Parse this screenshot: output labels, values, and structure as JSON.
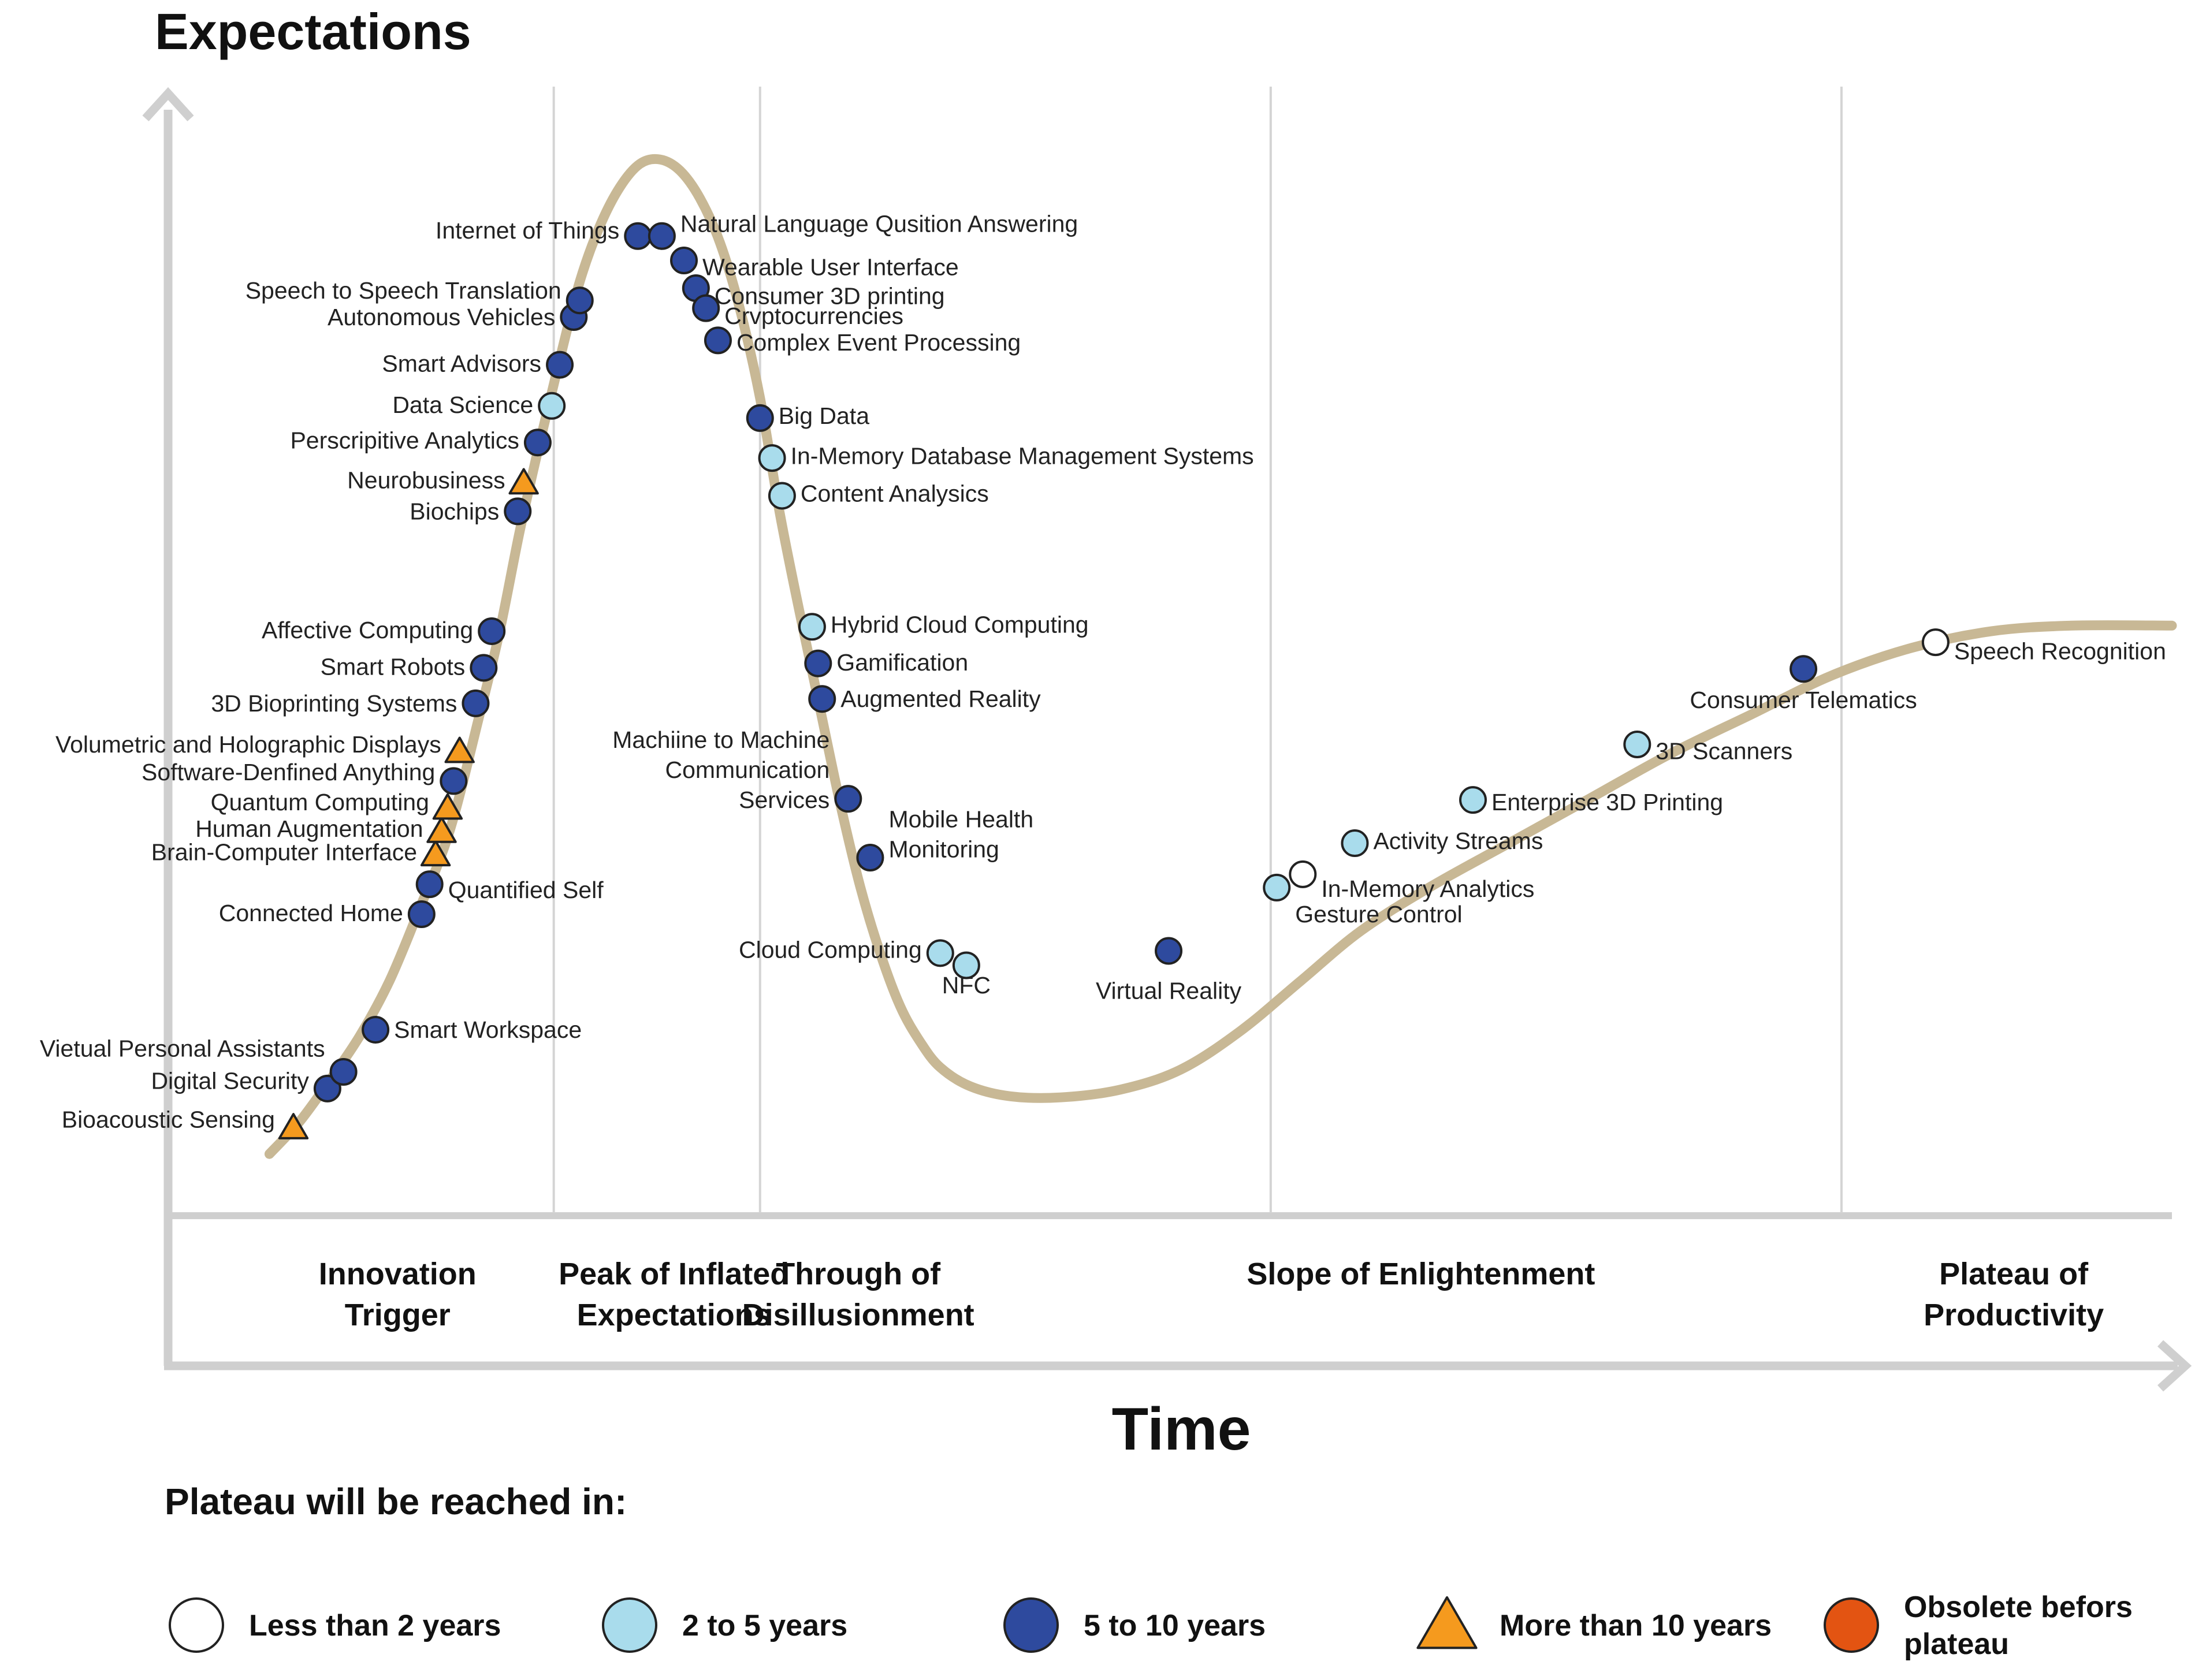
{
  "chart_data": {
    "type": "scatter",
    "title": "",
    "ylabel": "Expectations",
    "xlabel": "Time",
    "xlim": [
      0,
      100
    ],
    "ylim": [
      0,
      100
    ],
    "colors": {
      "curve": "#c8b895",
      "axis": "#cfcfcf",
      "divider": "#d4d4d4",
      "less_than_2": "#ffffff",
      "2_to_5": "#a9dcec",
      "5_to_10": "#2e4a9e",
      "more_than_10": "#f59a1e",
      "obsolete": "#e35412",
      "outline": "#222222"
    },
    "phases": [
      {
        "line1": "Innovation",
        "line2": "Trigger"
      },
      {
        "line1": "Peak of Inflated",
        "line2": "Expectations"
      },
      {
        "line1": "Through of",
        "line2": "Disillusionment"
      },
      {
        "line1": "Slope of Enlightenment",
        "line2": ""
      },
      {
        "line1": "Plateau of",
        "line2": "Productivity"
      }
    ],
    "phase_boundaries": [
      19.2,
      29.5,
      55.0,
      83.5
    ],
    "curve": [
      [
        5.0,
        5.4
      ],
      [
        6.5,
        8.3
      ],
      [
        8.0,
        12.0
      ],
      [
        9.5,
        16.0
      ],
      [
        11.0,
        21.0
      ],
      [
        12.5,
        27.5
      ],
      [
        14.0,
        34.5
      ],
      [
        15.5,
        45.0
      ],
      [
        16.5,
        52.5
      ],
      [
        17.5,
        61.5
      ],
      [
        18.5,
        69.5
      ],
      [
        19.5,
        77.0
      ],
      [
        20.5,
        84.0
      ],
      [
        21.5,
        89.0
      ],
      [
        22.5,
        92.5
      ],
      [
        23.5,
        94.6
      ],
      [
        24.5,
        95.0
      ],
      [
        25.5,
        94.0
      ],
      [
        26.5,
        91.5
      ],
      [
        27.5,
        87.5
      ],
      [
        28.5,
        81.5
      ],
      [
        29.5,
        73.5
      ],
      [
        30.5,
        63.0
      ],
      [
        31.5,
        54.0
      ],
      [
        32.5,
        45.5
      ],
      [
        33.5,
        37.0
      ],
      [
        34.5,
        29.5
      ],
      [
        35.5,
        23.5
      ],
      [
        36.5,
        18.7
      ],
      [
        37.5,
        15.5
      ],
      [
        38.5,
        13.2
      ],
      [
        40.0,
        11.5
      ],
      [
        42.0,
        10.6
      ],
      [
        44.5,
        10.5
      ],
      [
        47.5,
        11.2
      ],
      [
        50.5,
        13.0
      ],
      [
        53.5,
        16.5
      ],
      [
        56.5,
        21.0
      ],
      [
        59.5,
        25.5
      ],
      [
        63.0,
        29.5
      ],
      [
        67.0,
        33.5
      ],
      [
        71.0,
        37.5
      ],
      [
        75.0,
        41.5
      ],
      [
        79.0,
        45.0
      ],
      [
        83.0,
        48.5
      ],
      [
        87.0,
        51.0
      ],
      [
        91.0,
        52.5
      ],
      [
        95.0,
        53.0
      ],
      [
        100.0,
        53.0
      ]
    ],
    "points": [
      {
        "label": "Bioacoustic Sensing",
        "x": 6.2,
        "y": 7.8,
        "cat": "more_than_10",
        "side": "left",
        "ly": 8.5
      },
      {
        "label": "Digital Security",
        "x": 7.9,
        "y": 11.3,
        "cat": "5_to_10",
        "side": "left",
        "ly": 12.0
      },
      {
        "label": "Vietual Personal Assistants",
        "x": 8.7,
        "y": 12.8,
        "cat": "5_to_10",
        "side": "left",
        "ly": 14.9
      },
      {
        "label": "Smart Workspace",
        "x": 10.3,
        "y": 16.6,
        "cat": "5_to_10",
        "side": "right",
        "ly": 16.6
      },
      {
        "label": "Connected Home",
        "x": 12.6,
        "y": 27.0,
        "cat": "5_to_10",
        "side": "left",
        "ly": 27.1
      },
      {
        "label": "Quantified Self",
        "x": 13.0,
        "y": 29.7,
        "cat": "5_to_10",
        "side": "right",
        "ly": 29.2
      },
      {
        "label": "Brain-Computer Interface",
        "x": 13.3,
        "y": 32.4,
        "cat": "more_than_10",
        "side": "left",
        "ly": 32.6
      },
      {
        "label": "Human Augmentation",
        "x": 13.6,
        "y": 34.5,
        "cat": "more_than_10",
        "side": "left",
        "ly": 34.7
      },
      {
        "label": "Quantum Computing",
        "x": 13.9,
        "y": 36.6,
        "cat": "more_than_10",
        "side": "left",
        "ly": 37.1
      },
      {
        "label": "Software-Denfined Anything",
        "x": 14.2,
        "y": 39.0,
        "cat": "5_to_10",
        "side": "left",
        "ly": 39.8
      },
      {
        "label": "Volumetric and Holographic Displays",
        "x": 14.5,
        "y": 41.7,
        "cat": "more_than_10",
        "side": "left",
        "ly": 42.3
      },
      {
        "label": "3D Bioprinting Systems",
        "x": 15.3,
        "y": 46.0,
        "cat": "5_to_10",
        "side": "left",
        "ly": 46.0
      },
      {
        "label": "Smart Robots",
        "x": 15.7,
        "y": 49.2,
        "cat": "5_to_10",
        "side": "left",
        "ly": 49.3
      },
      {
        "label": "Affective Computing",
        "x": 16.1,
        "y": 52.5,
        "cat": "5_to_10",
        "side": "left",
        "ly": 52.6
      },
      {
        "label": "Biochips",
        "x": 17.4,
        "y": 63.3,
        "cat": "5_to_10",
        "side": "left",
        "ly": 63.3
      },
      {
        "label": "Neurobusiness",
        "x": 17.7,
        "y": 65.9,
        "cat": "more_than_10",
        "side": "left",
        "ly": 66.1
      },
      {
        "label": "Perscripitive Analytics",
        "x": 18.4,
        "y": 69.5,
        "cat": "5_to_10",
        "side": "left",
        "ly": 69.7
      },
      {
        "label": "Data Science",
        "x": 19.1,
        "y": 72.8,
        "cat": "2_to_5",
        "side": "left",
        "ly": 72.9
      },
      {
        "label": "Smart Advisors",
        "x": 19.5,
        "y": 76.5,
        "cat": "5_to_10",
        "side": "left",
        "ly": 76.6
      },
      {
        "label": "Autonomous Vehicles",
        "x": 20.2,
        "y": 80.8,
        "cat": "5_to_10",
        "side": "left",
        "ly": 80.8
      },
      {
        "label": "Speech to Speech Translation",
        "x": 20.5,
        "y": 82.3,
        "cat": "5_to_10",
        "side": "left",
        "ly": 83.2
      },
      {
        "label": "Internet of Things",
        "x": 23.4,
        "y": 88.1,
        "cat": "5_to_10",
        "side": "left",
        "ly": 88.6
      },
      {
        "label": "Natural Language Qusition Answering",
        "x": 24.6,
        "y": 88.1,
        "cat": "5_to_10",
        "side": "right",
        "ly": 89.2
      },
      {
        "label": "Wearable User Interface",
        "x": 25.7,
        "y": 85.9,
        "cat": "5_to_10",
        "side": "right",
        "ly": 85.3
      },
      {
        "label": "Consumer 3D printing",
        "x": 26.3,
        "y": 83.4,
        "cat": "5_to_10",
        "side": "right",
        "ly": 82.7
      },
      {
        "label": "Crvptocurrencies",
        "x": 26.8,
        "y": 81.6,
        "cat": "5_to_10",
        "side": "right",
        "ly": 80.9
      },
      {
        "label": "Complex Event Processing",
        "x": 27.4,
        "y": 78.7,
        "cat": "5_to_10",
        "side": "right",
        "ly": 78.5
      },
      {
        "label": "Big Data",
        "x": 29.5,
        "y": 71.7,
        "cat": "5_to_10",
        "side": "right",
        "ly": 71.9
      },
      {
        "label": "In-Memory Database Management Systems",
        "x": 30.1,
        "y": 68.1,
        "cat": "2_to_5",
        "side": "right",
        "ly": 68.3
      },
      {
        "label": "Content Analysics",
        "x": 30.6,
        "y": 64.7,
        "cat": "2_to_5",
        "side": "right",
        "ly": 64.9
      },
      {
        "label": "Hybrid Cloud Computing",
        "x": 32.1,
        "y": 52.9,
        "cat": "2_to_5",
        "side": "right",
        "ly": 53.1
      },
      {
        "label": "Gamification",
        "x": 32.4,
        "y": 49.6,
        "cat": "5_to_10",
        "side": "right",
        "ly": 49.7
      },
      {
        "label": "Augmented Reality",
        "x": 32.6,
        "y": 46.4,
        "cat": "5_to_10",
        "side": "right",
        "ly": 46.4
      },
      {
        "label": "Machiine to Machine|Communication|Services",
        "x": 33.9,
        "y": 37.4,
        "cat": "5_to_10",
        "side": "left",
        "ly": 40.0
      },
      {
        "label": "Mobile Health|Monitoring",
        "x": 35.0,
        "y": 32.1,
        "cat": "5_to_10",
        "side": "right",
        "ly": 34.2
      },
      {
        "label": "Cloud Computing",
        "x": 38.5,
        "y": 23.5,
        "cat": "2_to_5",
        "side": "left",
        "ly": 23.8
      },
      {
        "label": "NFC",
        "x": 39.8,
        "y": 22.4,
        "cat": "2_to_5",
        "side": "below",
        "ly": 20.6
      },
      {
        "label": "Virtual Reality",
        "x": 49.9,
        "y": 23.7,
        "cat": "5_to_10",
        "side": "below",
        "ly": 20.1
      },
      {
        "label": "Gesture Control",
        "x": 55.3,
        "y": 29.4,
        "cat": "2_to_5",
        "side": "right",
        "ly": 27.0
      },
      {
        "label": "In-Memory Analytics",
        "x": 56.6,
        "y": 30.6,
        "cat": "less_than_2",
        "side": "right",
        "ly": 29.3
      },
      {
        "label": "Activity Streams",
        "x": 59.2,
        "y": 33.4,
        "cat": "2_to_5",
        "side": "right",
        "ly": 33.6
      },
      {
        "label": "Enterprise 3D Printing",
        "x": 65.1,
        "y": 37.3,
        "cat": "2_to_5",
        "side": "right",
        "ly": 37.1
      },
      {
        "label": "3D Scanners",
        "x": 73.3,
        "y": 42.3,
        "cat": "2_to_5",
        "side": "right",
        "ly": 41.7
      },
      {
        "label": "Consumer Telematics",
        "x": 81.6,
        "y": 49.1,
        "cat": "5_to_10",
        "side": "below",
        "ly": 46.3
      },
      {
        "label": "Speech Recognition",
        "x": 88.2,
        "y": 51.5,
        "cat": "less_than_2",
        "side": "right",
        "ly": 50.7
      }
    ]
  },
  "legend": {
    "title": "Plateau will be reached in:",
    "items": [
      {
        "cat": "less_than_2",
        "label": "Less than 2 years",
        "shape": "circle"
      },
      {
        "cat": "2_to_5",
        "label": "2 to 5 years",
        "shape": "circle"
      },
      {
        "cat": "5_to_10",
        "label": "5 to 10 years",
        "shape": "circle"
      },
      {
        "cat": "more_than_10",
        "label": "More than 10 years",
        "shape": "triangle"
      },
      {
        "cat": "obsolete",
        "label": "Obsolete befors|plateau",
        "shape": "circle"
      }
    ]
  }
}
